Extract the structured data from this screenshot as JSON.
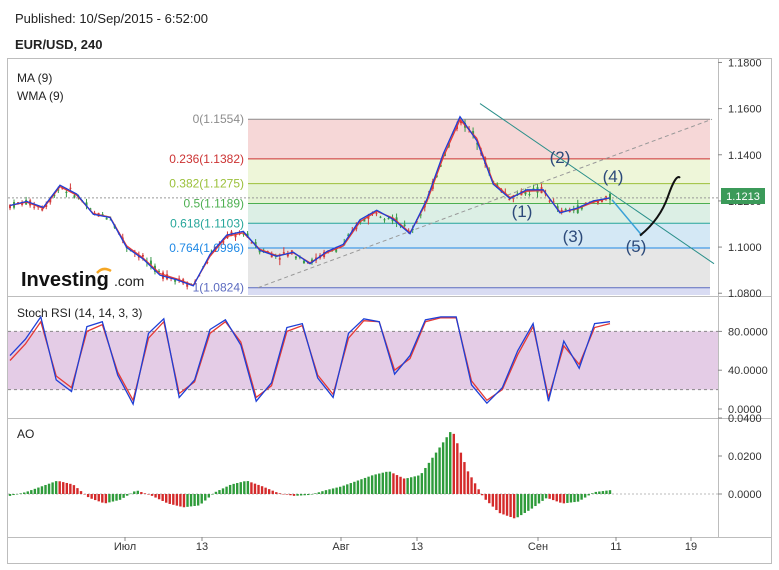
{
  "header": {
    "published": "Published: 10/Sep/2015 - 6:52:00",
    "symbol": "EUR/USD, 240"
  },
  "logo": {
    "text_main": "Investing",
    "text_tld": ".com"
  },
  "price_panel": {
    "indicators": [
      "MA (9)",
      "WMA (9)"
    ],
    "current_price": "1.1213",
    "price_color": "#3b9a59",
    "y_ticks": [
      "1.1800",
      "1.1600",
      "1.1400",
      "1.1200",
      "1.1000",
      "1.0800"
    ],
    "y_tick_values": [
      1.18,
      1.16,
      1.14,
      1.12,
      1.1,
      1.08
    ],
    "ylim": [
      1.0788,
      1.1815
    ]
  },
  "fibonacci": [
    {
      "label": "0(1.1554)",
      "value": 1.1554,
      "color": "#8c8c8c",
      "fill": "#f6d7d7"
    },
    {
      "label": "0.236(1.1382)",
      "value": 1.1382,
      "color": "#cc3333",
      "fill": "#eef6d9"
    },
    {
      "label": "0.382(1.1275)",
      "value": 1.1275,
      "color": "#9bc03a",
      "fill": "#e5f3d5"
    },
    {
      "label": "0.5(1.1189)",
      "value": 1.1189,
      "color": "#4caf50",
      "fill": "#dcefe5"
    },
    {
      "label": "0.618(1.1103)",
      "value": 1.1103,
      "color": "#26a69a",
      "fill": "#d4e8f5"
    },
    {
      "label": "0.764(1.0996)",
      "value": 1.0996,
      "color": "#1e88e5",
      "fill": "#e6e6e6"
    },
    {
      "label": "1(1.0824)",
      "value": 1.0824,
      "color": "#5c6bc0",
      "fill": "#d9dcf3"
    }
  ],
  "waves": [
    "(1)",
    "(2)",
    "(3)",
    "(4)",
    "(5)"
  ],
  "stoch_panel": {
    "title": "Stoch RSI (14, 14, 3, 3)",
    "y_ticks": [
      "80.0000",
      "40.0000",
      "0.0000"
    ],
    "y_tick_values": [
      80,
      40,
      0
    ],
    "band": [
      20,
      80
    ],
    "band_color": "#e4cce6"
  },
  "ao_panel": {
    "title": "AO",
    "y_ticks": [
      "0.0400",
      "0.0200",
      "0.0000"
    ],
    "y_tick_values": [
      0.04,
      0.02,
      0.0
    ]
  },
  "x_axis": {
    "ticks": [
      "Июл",
      "13",
      "Авг",
      "13",
      "Сен",
      "11",
      "19"
    ]
  },
  "chart_data": {
    "type": "line",
    "symbol": "EUR/USD",
    "timeframe": "240",
    "series": [
      {
        "name": "MA (9)",
        "values": [
          1.118,
          1.1195,
          1.1168,
          1.1262,
          1.1225,
          1.1145,
          1.113,
          1.1005,
          1.0952,
          1.0885,
          1.0862,
          1.0835,
          1.096,
          1.1046,
          1.1062,
          1.099,
          1.0963,
          1.0975,
          1.0932,
          1.0975,
          1.1005,
          1.111,
          1.1155,
          1.1125,
          1.1062,
          1.1195,
          1.139,
          1.1552,
          1.1472,
          1.128,
          1.1215,
          1.1242,
          1.1245,
          1.1152,
          1.1165,
          1.1195,
          1.1213
        ]
      },
      {
        "name": "WMA (9)",
        "values": [
          1.118,
          1.1198,
          1.1172,
          1.1268,
          1.123,
          1.1142,
          1.1128,
          1.0998,
          1.0948,
          1.0878,
          1.0858,
          1.0832,
          1.0968,
          1.1052,
          1.1068,
          1.0985,
          1.096,
          1.0978,
          1.0928,
          1.098,
          1.1012,
          1.1118,
          1.116,
          1.112,
          1.1058,
          1.1205,
          1.1405,
          1.1565,
          1.1462,
          1.1272,
          1.121,
          1.1248,
          1.1248,
          1.1148,
          1.1168,
          1.12,
          1.1213
        ]
      }
    ],
    "stoch_rsi": {
      "k": [
        55,
        72,
        95,
        30,
        18,
        85,
        90,
        35,
        5,
        78,
        93,
        12,
        30,
        82,
        92,
        66,
        8,
        27,
        84,
        88,
        32,
        12,
        78,
        93,
        90,
        36,
        55,
        92,
        95,
        95,
        25,
        6,
        22,
        60,
        88,
        8,
        70,
        42,
        88,
        90
      ],
      "d": [
        50,
        67,
        90,
        34,
        22,
        80,
        87,
        38,
        9,
        73,
        90,
        16,
        28,
        78,
        90,
        69,
        12,
        24,
        80,
        86,
        35,
        15,
        73,
        91,
        90,
        40,
        52,
        90,
        94,
        94,
        29,
        9,
        20,
        56,
        85,
        12,
        65,
        46,
        84,
        88
      ]
    },
    "ao": [
      -0.001,
      0.001,
      0.004,
      0.007,
      0.005,
      -0.002,
      -0.005,
      -0.003,
      0.002,
      -0.001,
      -0.005,
      -0.007,
      -0.006,
      0.001,
      0.005,
      0.007,
      0.004,
      0.0005,
      -0.001,
      -0.0005,
      0.002,
      0.004,
      0.007,
      0.01,
      0.012,
      0.008,
      0.01,
      0.022,
      0.034,
      0.012,
      -0.002,
      -0.01,
      -0.013,
      -0.008,
      -0.002,
      -0.005,
      -0.004,
      0.001,
      0.002
    ],
    "fib_levels": [
      1.1554,
      1.1382,
      1.1275,
      1.1189,
      1.1103,
      1.0996,
      1.0824
    ]
  }
}
